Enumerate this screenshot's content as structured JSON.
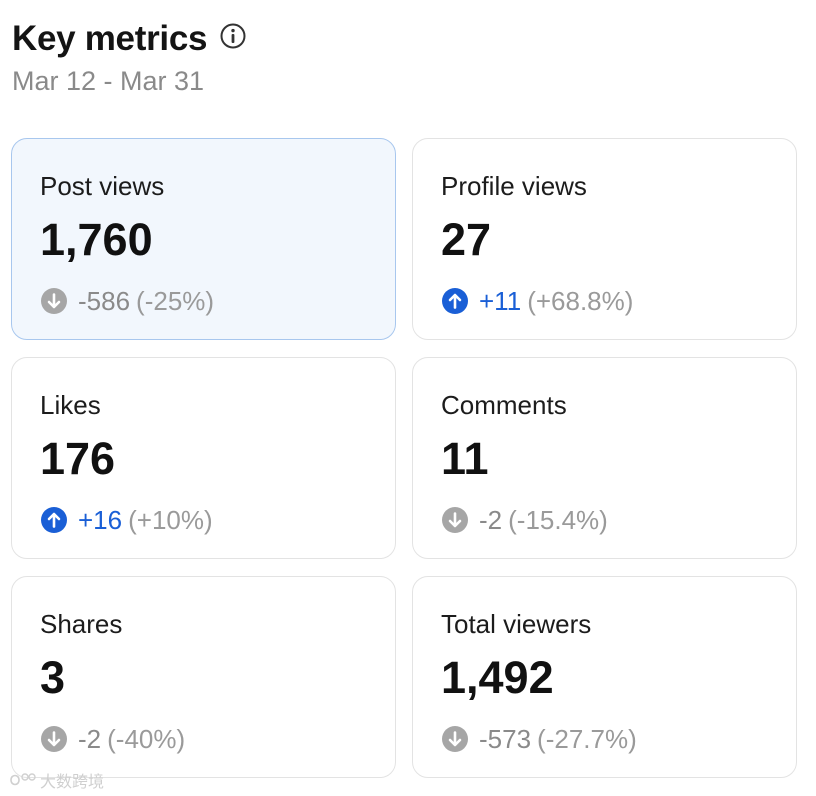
{
  "header": {
    "title": "Key metrics",
    "info_icon": "info-circle-icon",
    "date_range": "Mar 12 - Mar 31"
  },
  "colors": {
    "selected_background": "#f2f7fd",
    "selected_border": "#a8c7ee",
    "up_accent": "#1a5fd6",
    "down_accent": "#a6a6a6",
    "muted_text": "#8a8a8a"
  },
  "metrics": [
    {
      "label": "Post views",
      "value": "1,760",
      "trend": "down",
      "delta": "-586",
      "percent": "(-25%)",
      "selected": true
    },
    {
      "label": "Profile views",
      "value": "27",
      "trend": "up",
      "delta": "+11",
      "percent": "(+68.8%)",
      "selected": false
    },
    {
      "label": "Likes",
      "value": "176",
      "trend": "up",
      "delta": "+16",
      "percent": "(+10%)",
      "selected": false
    },
    {
      "label": "Comments",
      "value": "11",
      "trend": "down",
      "delta": "-2",
      "percent": "(-15.4%)",
      "selected": false
    },
    {
      "label": "Shares",
      "value": "3",
      "trend": "down",
      "delta": "-2",
      "percent": "(-40%)",
      "selected": false
    },
    {
      "label": "Total viewers",
      "value": "1,492",
      "trend": "down",
      "delta": "-573",
      "percent": "(-27.7%)",
      "selected": false
    }
  ],
  "watermark": {
    "text": "大数跨境"
  }
}
